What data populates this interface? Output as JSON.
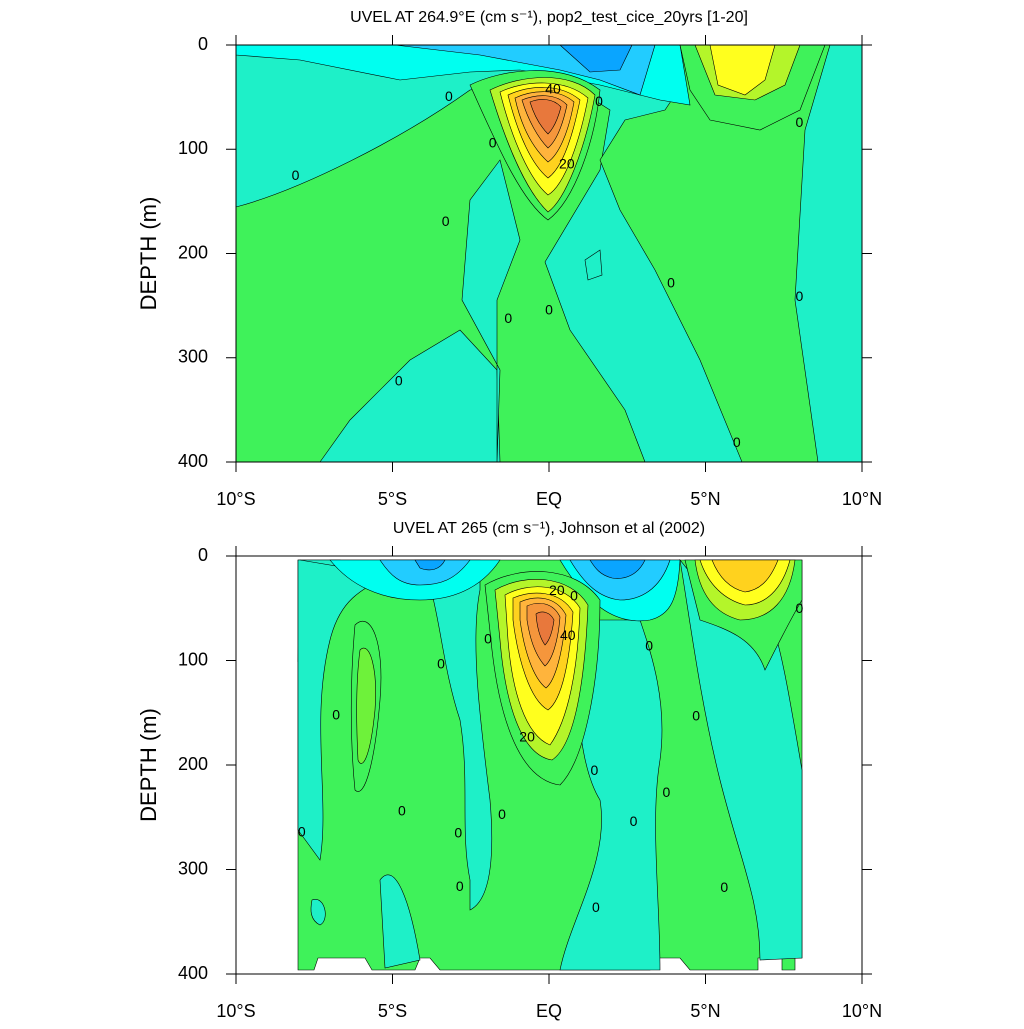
{
  "chart_data": [
    {
      "type": "contour",
      "title": "UVEL AT 264.9°E (cm s⁻¹), pop2_test_cice_20yrs [1-20]",
      "ylabel": "DEPTH (m)",
      "xlim": [
        -10,
        10
      ],
      "xticks": [
        {
          "value": -10,
          "label": "10°S"
        },
        {
          "value": -5,
          "label": "5°S"
        },
        {
          "value": 0,
          "label": "EQ"
        },
        {
          "value": 5,
          "label": "5°N"
        },
        {
          "value": 10,
          "label": "10°N"
        }
      ],
      "ylim": [
        0,
        400
      ],
      "y_reversed": true,
      "yticks": [
        0,
        100,
        200,
        300,
        400
      ],
      "contour_labels": {
        "x": [
          0.13,
          0.57,
          -8.1,
          -3.2,
          -1.8,
          1.6,
          -3.3,
          -1.3,
          0.0,
          -4.8,
          3.9,
          8.0,
          8.0,
          6.0
        ],
        "y": [
          43,
          115,
          126,
          50,
          95,
          55,
          170,
          263,
          255,
          323,
          229,
          75,
          242,
          382
        ],
        "values": [
          40,
          20,
          0,
          0,
          0,
          0,
          0,
          0,
          0,
          0,
          0,
          0,
          0,
          0
        ]
      }
    },
    {
      "type": "contour",
      "title": "UVEL AT 265 (cm s⁻¹), Johnson et al (2002)",
      "ylabel": "DEPTH (m)",
      "xlim": [
        -10,
        10
      ],
      "xticks": [
        {
          "value": -10,
          "label": "10°S"
        },
        {
          "value": -5,
          "label": "5°S"
        },
        {
          "value": 0,
          "label": "EQ"
        },
        {
          "value": 5,
          "label": "5°N"
        },
        {
          "value": 10,
          "label": "10°N"
        }
      ],
      "ylim": [
        0,
        400
      ],
      "y_reversed": true,
      "yticks": [
        0,
        100,
        200,
        300,
        400
      ],
      "contour_labels": {
        "x": [
          0.25,
          -0.7,
          0.6,
          0.8,
          -6.8,
          -3.45,
          -1.95,
          3.2,
          -7.9,
          -4.7,
          -2.9,
          -1.5,
          -2.85,
          1.45,
          2.7,
          3.75,
          4.7,
          5.6,
          1.5,
          8.0
        ],
        "y": [
          34,
          174,
          77,
          39,
          153,
          104,
          80,
          87,
          265,
          245,
          266,
          248,
          317,
          206,
          255,
          227,
          154,
          318,
          337,
          51
        ],
        "values": [
          20,
          20,
          40,
          0,
          0,
          0,
          0,
          0,
          0,
          0,
          0,
          0,
          0,
          0,
          0,
          0,
          0,
          0,
          0,
          0
        ]
      }
    }
  ]
}
